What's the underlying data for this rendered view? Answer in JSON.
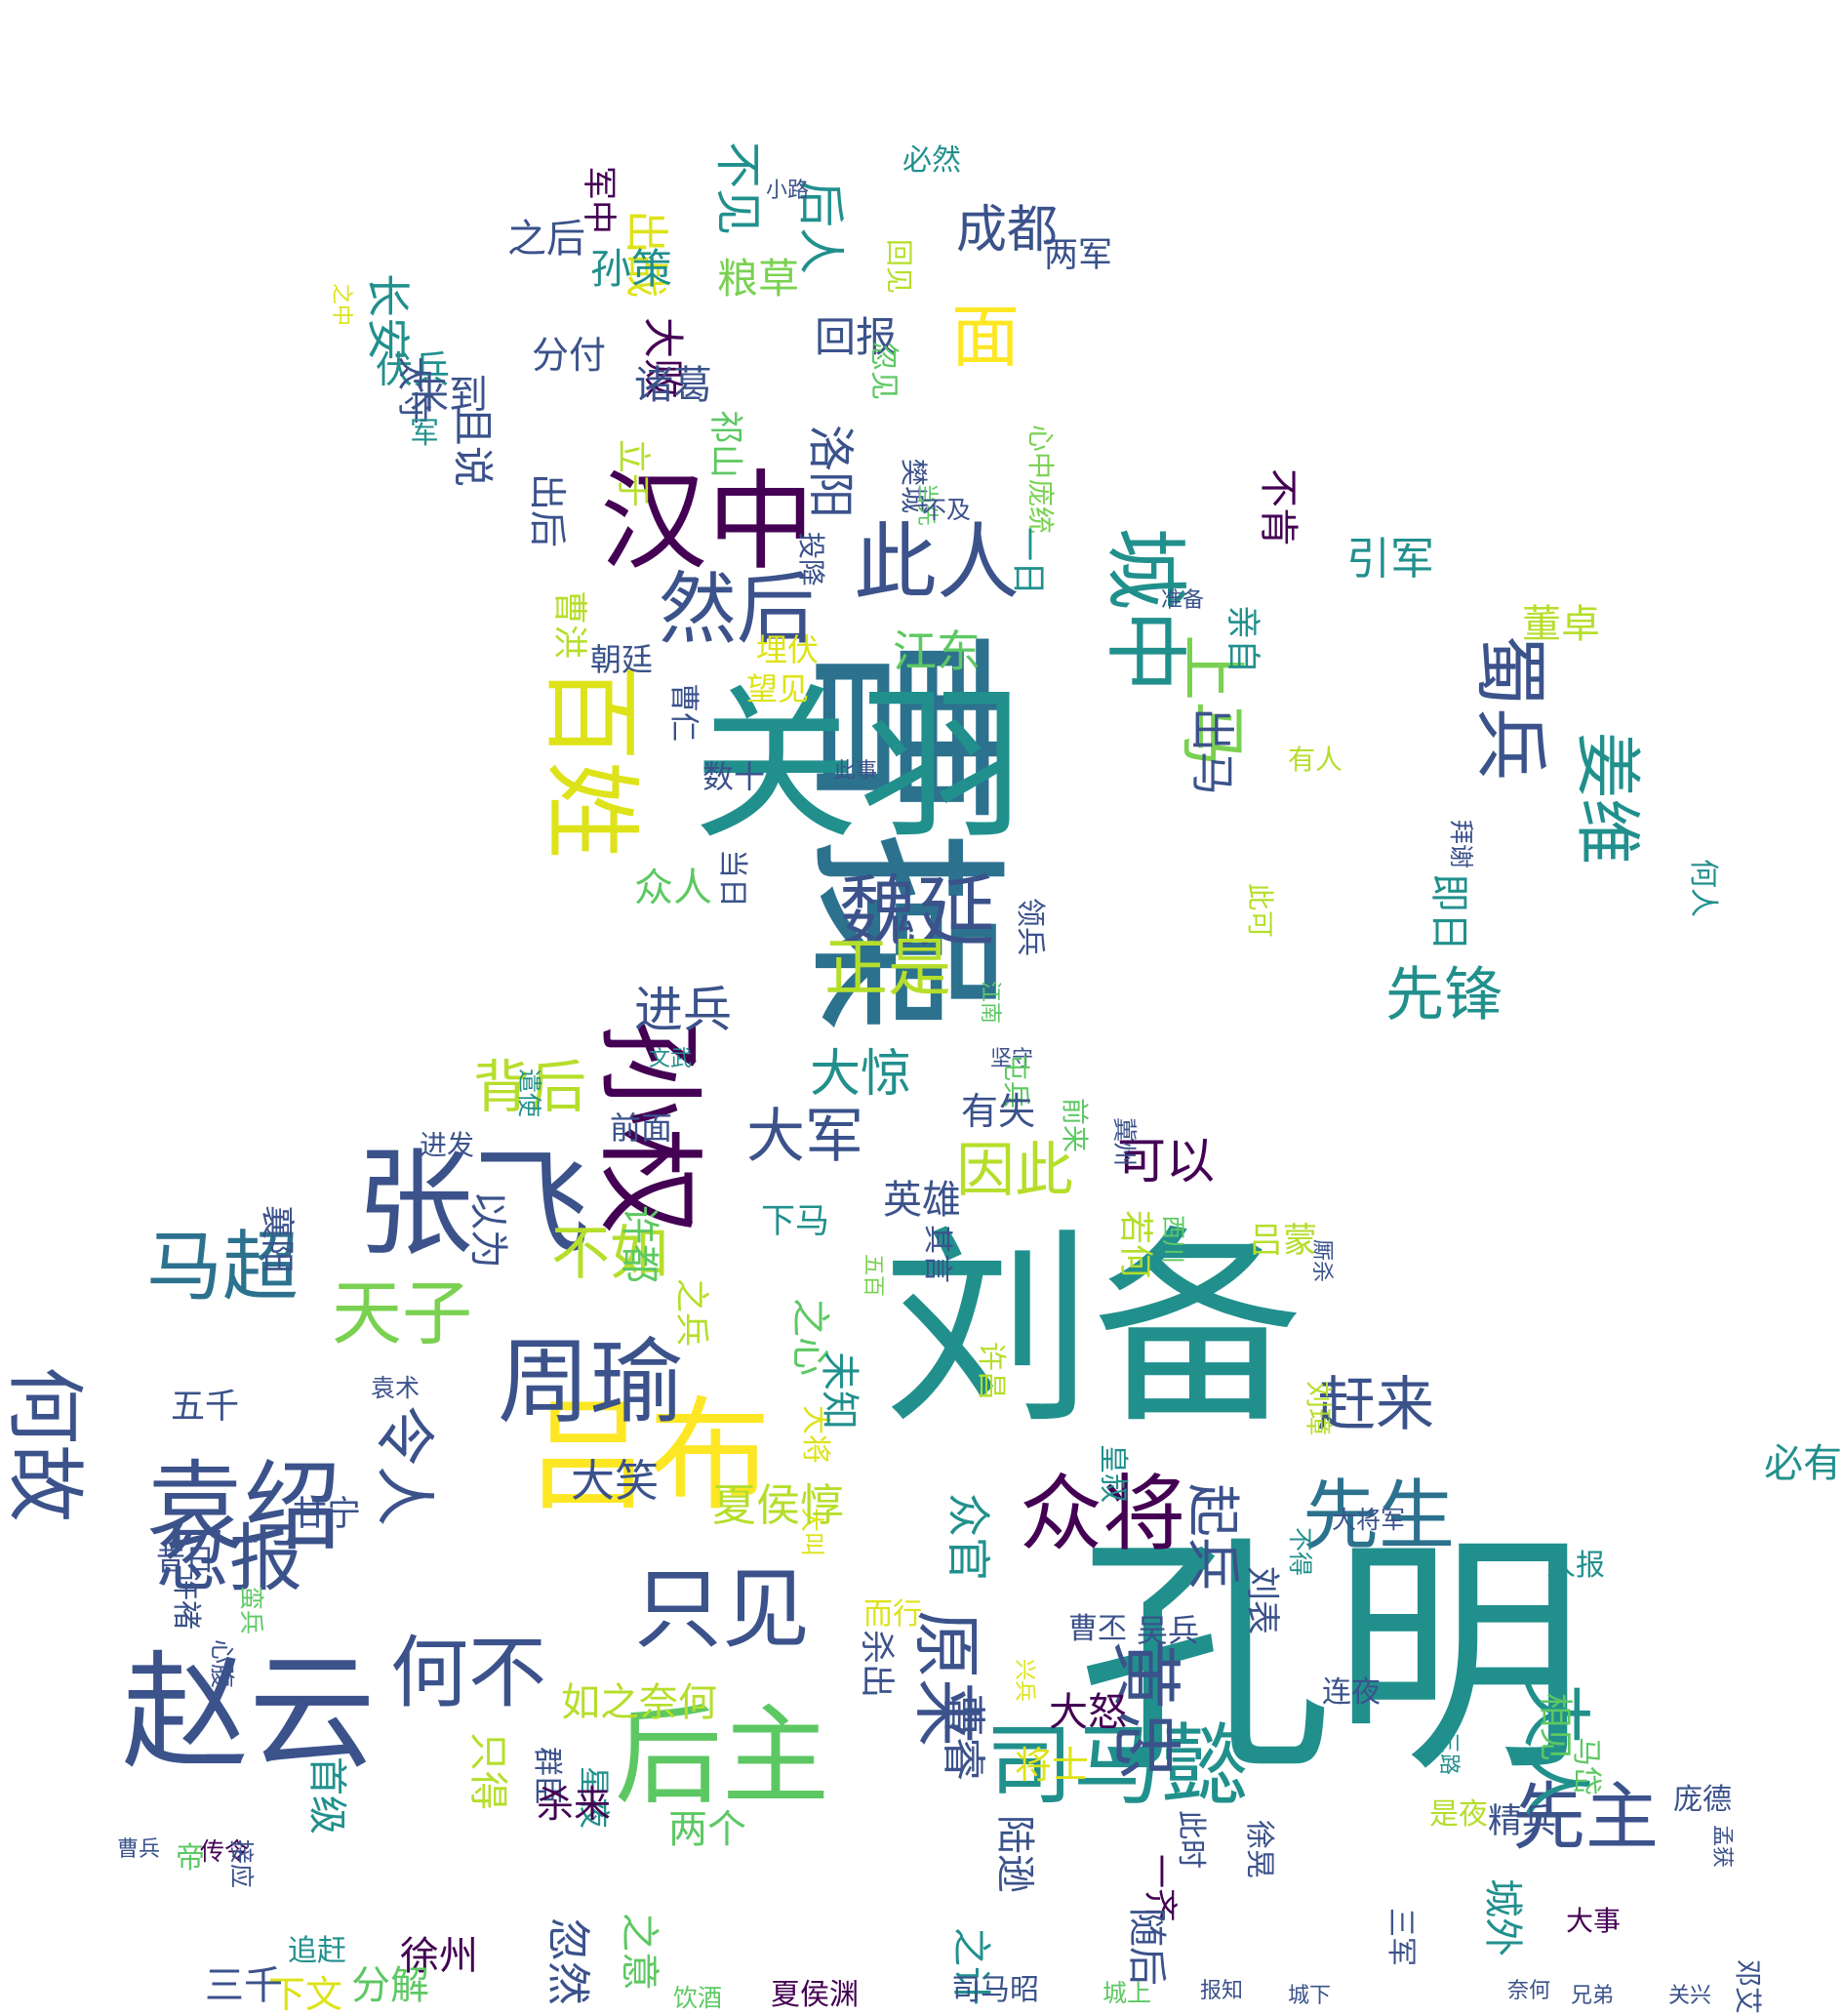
{
  "title": "",
  "colors": {
    "background": "#ffffff",
    "palette": [
      "#440154",
      "#3b528b",
      "#21908d",
      "#5dc863",
      "#fde725"
    ]
  },
  "words": [
    {
      "text": "孔明",
      "color": "#21908d",
      "vertical": false
    },
    {
      "text": "刘备",
      "color": "#21908d",
      "vertical": false
    },
    {
      "text": "曹操",
      "color": "#2c728e",
      "vertical": true
    },
    {
      "text": "关羽",
      "color": "#21908d",
      "vertical": false
    },
    {
      "text": "孙权",
      "color": "#440154",
      "vertical": true
    },
    {
      "text": "吕布",
      "color": "#fde725",
      "vertical": false
    },
    {
      "text": "赵云",
      "color": "#3b528b",
      "vertical": false
    },
    {
      "text": "张飞",
      "color": "#3b528b",
      "vertical": false
    },
    {
      "text": "汉中",
      "color": "#440154",
      "vertical": false
    },
    {
      "text": "百姓",
      "color": "#dde318",
      "vertical": true
    },
    {
      "text": "城中",
      "color": "#21908d",
      "vertical": true
    },
    {
      "text": "后主",
      "color": "#5dc863",
      "vertical": false
    },
    {
      "text": "周瑜",
      "color": "#3b528b",
      "vertical": false
    },
    {
      "text": "袁绍",
      "color": "#3b528b",
      "vertical": false
    },
    {
      "text": "司马懿",
      "color": "#21908d",
      "vertical": false
    },
    {
      "text": "此人",
      "color": "#3b528b",
      "vertical": false
    },
    {
      "text": "然后",
      "color": "#3b528b",
      "vertical": false
    },
    {
      "text": "魏延",
      "color": "#3b528b",
      "vertical": false
    },
    {
      "text": "众将",
      "color": "#440154",
      "vertical": false
    },
    {
      "text": "只见",
      "color": "#3b528b",
      "vertical": false
    },
    {
      "text": "先生",
      "color": "#2c728e",
      "vertical": false
    },
    {
      "text": "先主",
      "color": "#3b528b",
      "vertical": false
    },
    {
      "text": "天子",
      "color": "#7ad151",
      "vertical": false
    },
    {
      "text": "马超",
      "color": "#2c728e",
      "vertical": false
    },
    {
      "text": "何故",
      "color": "#3b528b",
      "vertical": true
    },
    {
      "text": "何不",
      "color": "#3b528b",
      "vertical": false
    },
    {
      "text": "蜀兵",
      "color": "#3b528b",
      "vertical": true
    },
    {
      "text": "上马",
      "color": "#7ad151",
      "vertical": true
    },
    {
      "text": "姜维",
      "color": "#21908d",
      "vertical": true
    },
    {
      "text": "夫人",
      "color": "#21908d",
      "vertical": true
    },
    {
      "text": "黄忠",
      "color": "#3b528b",
      "vertical": true
    },
    {
      "text": "原来",
      "color": "#3b528b",
      "vertical": true
    },
    {
      "text": "忽报",
      "color": "#3b528b",
      "vertical": false
    },
    {
      "text": "面",
      "color": "#fde725",
      "vertical": false
    },
    {
      "text": "正是",
      "color": "#b5de2b",
      "vertical": false
    },
    {
      "text": "先锋",
      "color": "#21908d",
      "vertical": false
    },
    {
      "text": "大军",
      "color": "#3b528b",
      "vertical": false
    },
    {
      "text": "因此",
      "color": "#b5de2b",
      "vertical": false
    },
    {
      "text": "背后",
      "color": "#b5de2b",
      "vertical": false
    },
    {
      "text": "大惊",
      "color": "#21908d",
      "vertical": false
    },
    {
      "text": "不如",
      "color": "#b5de2b",
      "vertical": false
    },
    {
      "text": "令人",
      "color": "#3b528b",
      "vertical": true
    },
    {
      "text": "赶来",
      "color": "#3b528b",
      "vertical": false
    },
    {
      "text": "起兵",
      "color": "#3b528b",
      "vertical": true
    },
    {
      "text": "可以",
      "color": "#440154",
      "vertical": false
    },
    {
      "text": "江东",
      "color": "#5dc863",
      "vertical": false
    },
    {
      "text": "洛阳",
      "color": "#3b528b",
      "vertical": true
    },
    {
      "text": "成都",
      "color": "#3b528b",
      "vertical": false
    },
    {
      "text": "后人",
      "color": "#21908d",
      "vertical": true
    },
    {
      "text": "不见",
      "color": "#21908d",
      "vertical": true
    },
    {
      "text": "出战",
      "color": "#dde318",
      "vertical": true
    },
    {
      "text": "孙策",
      "color": "#21908d",
      "vertical": false
    },
    {
      "text": "粮草",
      "color": "#7ad151",
      "vertical": false
    },
    {
      "text": "回报",
      "color": "#3b528b",
      "vertical": false
    },
    {
      "text": "大败",
      "color": "#440154",
      "vertical": true
    },
    {
      "text": "长安",
      "color": "#21908d",
      "vertical": true
    },
    {
      "text": "之后",
      "color": "#3b528b",
      "vertical": false
    },
    {
      "text": "分付",
      "color": "#3b528b",
      "vertical": false
    },
    {
      "text": "伏兵",
      "color": "#21908d",
      "vertical": false
    },
    {
      "text": "太守",
      "color": "#3b528b",
      "vertical": true
    },
    {
      "text": "诸葛",
      "color": "#3b528b",
      "vertical": false
    },
    {
      "text": "且说",
      "color": "#3b528b",
      "vertical": true
    },
    {
      "text": "军中",
      "color": "#440154",
      "vertical": true
    },
    {
      "text": "必然",
      "color": "#21908d",
      "vertical": false
    },
    {
      "text": "小路",
      "color": "#3b528b",
      "vertical": false
    },
    {
      "text": "两军",
      "color": "#3b528b",
      "vertical": false
    },
    {
      "text": "心中庞统",
      "color": "#7ad151",
      "vertical": true
    },
    {
      "text": "回见",
      "color": "#b5de2b",
      "vertical": true
    },
    {
      "text": "忽见",
      "color": "#5dc863",
      "vertical": true
    },
    {
      "text": "之中",
      "color": "#dde318",
      "vertical": true
    },
    {
      "text": "来到",
      "color": "#3b528b",
      "vertical": false
    },
    {
      "text": "军",
      "color": "#21908d",
      "vertical": false
    },
    {
      "text": "立于",
      "color": "#b5de2b",
      "vertical": true
    },
    {
      "text": "祁山",
      "color": "#5dc863",
      "vertical": true
    },
    {
      "text": "樊城",
      "color": "#3b528b",
      "vertical": true
    },
    {
      "text": "当先",
      "color": "#5dc863",
      "vertical": true
    },
    {
      "text": "不及",
      "color": "#3b528b",
      "vertical": false
    },
    {
      "text": "出后",
      "color": "#3b528b",
      "vertical": true
    },
    {
      "text": "一日",
      "color": "#21908d",
      "vertical": true
    },
    {
      "text": "投降",
      "color": "#3b528b",
      "vertical": true
    },
    {
      "text": "曹洪",
      "color": "#b5de2b",
      "vertical": true
    },
    {
      "text": "埋伏",
      "color": "#dde318",
      "vertical": false
    },
    {
      "text": "朝廷",
      "color": "#3b528b",
      "vertical": false
    },
    {
      "text": "望见",
      "color": "#dde318",
      "vertical": false
    },
    {
      "text": "此事",
      "color": "#3b528b",
      "vertical": false
    },
    {
      "text": "曹仁",
      "color": "#3b528b",
      "vertical": true
    },
    {
      "text": "数十",
      "color": "#3b528b",
      "vertical": false
    },
    {
      "text": "当日",
      "color": "#3b528b",
      "vertical": true
    },
    {
      "text": "众人",
      "color": "#5dc863",
      "vertical": false
    },
    {
      "text": "领兵",
      "color": "#3b528b",
      "vertical": true
    },
    {
      "text": "江南",
      "color": "#5dc863",
      "vertical": true
    },
    {
      "text": "进兵",
      "color": "#3b528b",
      "vertical": false
    },
    {
      "text": "坚守",
      "color": "#3b528b",
      "vertical": false
    },
    {
      "text": "文武",
      "color": "#21908d",
      "vertical": false
    },
    {
      "text": "引军",
      "color": "#21908d",
      "vertical": false
    },
    {
      "text": "不肯",
      "color": "#440154",
      "vertical": true
    },
    {
      "text": "董卓",
      "color": "#b5de2b",
      "vertical": false
    },
    {
      "text": "亲自",
      "color": "#21908d",
      "vertical": true
    },
    {
      "text": "出马",
      "color": "#3b528b",
      "vertical": true
    },
    {
      "text": "准备",
      "color": "#3b528b",
      "vertical": false
    },
    {
      "text": "有人",
      "color": "#b5de2b",
      "vertical": false
    },
    {
      "text": "拜谢",
      "color": "#3b528b",
      "vertical": true
    },
    {
      "text": "此可",
      "color": "#b5de2b",
      "vertical": true
    },
    {
      "text": "即日",
      "color": "#21908d",
      "vertical": true
    },
    {
      "text": "何人",
      "color": "#21908d",
      "vertical": true
    },
    {
      "text": "遣使",
      "color": "#21908d",
      "vertical": true
    },
    {
      "text": "进发",
      "color": "#3b528b",
      "vertical": false
    },
    {
      "text": "前面",
      "color": "#3b528b",
      "vertical": false
    },
    {
      "text": "屯兵",
      "color": "#5dc863",
      "vertical": true
    },
    {
      "text": "前来",
      "color": "#5dc863",
      "vertical": true
    },
    {
      "text": "冀州",
      "color": "#3b528b",
      "vertical": true
    },
    {
      "text": "有失",
      "color": "#3b528b",
      "vertical": false
    },
    {
      "text": "若何",
      "color": "#b5de2b",
      "vertical": true
    },
    {
      "text": "西川",
      "color": "#5dc863",
      "vertical": true
    },
    {
      "text": "吕蒙",
      "color": "#b5de2b",
      "vertical": false
    },
    {
      "text": "下马",
      "color": "#21908d",
      "vertical": false
    },
    {
      "text": "英雄",
      "color": "#3b528b",
      "vertical": false
    },
    {
      "text": "以为",
      "color": "#3b528b",
      "vertical": true
    },
    {
      "text": "许都",
      "color": "#5dc863",
      "vertical": true
    },
    {
      "text": "襄阳",
      "color": "#3b528b",
      "vertical": true
    },
    {
      "text": "其言",
      "color": "#3b528b",
      "vertical": true
    },
    {
      "text": "五百",
      "color": "#7ad151",
      "vertical": true
    },
    {
      "text": "厮杀",
      "color": "#3b528b",
      "vertical": true
    },
    {
      "text": "之心",
      "color": "#5dc863",
      "vertical": true
    },
    {
      "text": "之兵",
      "color": "#b5de2b",
      "vertical": true
    },
    {
      "text": "大将",
      "color": "#dde318",
      "vertical": true
    },
    {
      "text": "未知",
      "color": "#21908d",
      "vertical": true
    },
    {
      "text": "大叫",
      "color": "#dde318",
      "vertical": true
    },
    {
      "text": "许昌",
      "color": "#b5de2b",
      "vertical": true
    },
    {
      "text": "皇叔",
      "color": "#21908d",
      "vertical": true
    },
    {
      "text": "刘璋",
      "color": "#b5de2b",
      "vertical": true
    },
    {
      "text": "五千",
      "color": "#3b528b",
      "vertical": false
    },
    {
      "text": "袁术",
      "color": "#3b528b",
      "vertical": false
    },
    {
      "text": "甘宁",
      "color": "#3b528b",
      "vertical": false
    },
    {
      "text": "大笑",
      "color": "#3b528b",
      "vertical": false
    },
    {
      "text": "夏侯惇",
      "color": "#b5de2b",
      "vertical": false
    },
    {
      "text": "必有",
      "color": "#21908d",
      "vertical": false
    },
    {
      "text": "众官",
      "color": "#21908d",
      "vertical": true
    },
    {
      "text": "刘表",
      "color": "#3b528b",
      "vertical": true
    },
    {
      "text": "不得",
      "color": "#21908d",
      "vertical": true
    },
    {
      "text": "大将军",
      "color": "#3b528b",
      "vertical": false
    },
    {
      "text": "昔日",
      "color": "#3b528b",
      "vertical": false
    },
    {
      "text": "许褚",
      "color": "#3b528b",
      "vertical": true
    },
    {
      "text": "蛮兵",
      "color": "#5dc863",
      "vertical": true
    },
    {
      "text": "而行",
      "color": "#dde318",
      "vertical": false
    },
    {
      "text": "曹丕",
      "color": "#3b528b",
      "vertical": false
    },
    {
      "text": "吴兵",
      "color": "#3b528b",
      "vertical": false
    },
    {
      "text": "人报",
      "color": "#21908d",
      "vertical": false
    },
    {
      "text": "连夜",
      "color": "#3b528b",
      "vertical": false
    },
    {
      "text": "心腹",
      "color": "#3b528b",
      "vertical": true
    },
    {
      "text": "如之奈何",
      "color": "#b5de2b",
      "vertical": false
    },
    {
      "text": "杀出",
      "color": "#3b528b",
      "vertical": true
    },
    {
      "text": "大怒",
      "color": "#440154",
      "vertical": false
    },
    {
      "text": "徐晃",
      "color": "#3b528b",
      "vertical": true
    },
    {
      "text": "相见",
      "color": "#5dc863",
      "vertical": true
    },
    {
      "text": "马岱",
      "color": "#5dc863",
      "vertical": true
    },
    {
      "text": "精兵",
      "color": "#3b528b",
      "vertical": false
    },
    {
      "text": "三路",
      "color": "#21908d",
      "vertical": true
    },
    {
      "text": "首级",
      "color": "#21908d",
      "vertical": true
    },
    {
      "text": "群臣",
      "color": "#3b528b",
      "vertical": true
    },
    {
      "text": "曹兵",
      "color": "#3b528b",
      "vertical": false
    },
    {
      "text": "传令",
      "color": "#440154",
      "vertical": false
    },
    {
      "text": "接应",
      "color": "#3b528b",
      "vertical": true
    },
    {
      "text": "星夜",
      "color": "#21908d",
      "vertical": true
    },
    {
      "text": "两个",
      "color": "#5dc863",
      "vertical": false
    },
    {
      "text": "将士",
      "color": "#dde318",
      "vertical": false
    },
    {
      "text": "是夜",
      "color": "#b5de2b",
      "vertical": false
    },
    {
      "text": "只得",
      "color": "#b5de2b",
      "vertical": true
    },
    {
      "text": "庞德",
      "color": "#3b528b",
      "vertical": false
    },
    {
      "text": "陆逊",
      "color": "#3b528b",
      "vertical": true
    },
    {
      "text": "一齐",
      "color": "#440154",
      "vertical": true
    },
    {
      "text": "曹睿",
      "color": "#3b528b",
      "vertical": true
    },
    {
      "text": "兴兵",
      "color": "#dde318",
      "vertical": true
    },
    {
      "text": "之计",
      "color": "#21908d",
      "vertical": true
    },
    {
      "text": "此时",
      "color": "#3b528b",
      "vertical": true
    },
    {
      "text": "帝",
      "color": "#5dc863",
      "vertical": false
    },
    {
      "text": "杀来",
      "color": "#440154",
      "vertical": false
    },
    {
      "text": "忽然",
      "color": "#3b528b",
      "vertical": true
    },
    {
      "text": "徐州",
      "color": "#440154",
      "vertical": false
    },
    {
      "text": "之意",
      "color": "#5dc863",
      "vertical": true
    },
    {
      "text": "城外",
      "color": "#21908d",
      "vertical": true
    },
    {
      "text": "孟获",
      "color": "#3b528b",
      "vertical": true
    },
    {
      "text": "大事",
      "color": "#440154",
      "vertical": false
    },
    {
      "text": "三军",
      "color": "#3b528b",
      "vertical": true
    },
    {
      "text": "随后",
      "color": "#3b528b",
      "vertical": true
    },
    {
      "text": "追赶",
      "color": "#21908d",
      "vertical": false
    },
    {
      "text": "三千",
      "color": "#3b528b",
      "vertical": false
    },
    {
      "text": "下文",
      "color": "#dde318",
      "vertical": false
    },
    {
      "text": "分解",
      "color": "#5dc863",
      "vertical": false
    },
    {
      "text": "饮酒",
      "color": "#5dc863",
      "vertical": false
    },
    {
      "text": "夏侯渊",
      "color": "#440154",
      "vertical": false
    },
    {
      "text": "司马昭",
      "color": "#3b528b",
      "vertical": false
    },
    {
      "text": "城上",
      "color": "#5dc863",
      "vertical": false
    },
    {
      "text": "报知",
      "color": "#3b528b",
      "vertical": false
    },
    {
      "text": "城下",
      "color": "#3b528b",
      "vertical": false
    },
    {
      "text": "奈何",
      "color": "#3b528b",
      "vertical": false
    },
    {
      "text": "兄弟",
      "color": "#3b528b",
      "vertical": false
    },
    {
      "text": "关兴",
      "color": "#3b528b",
      "vertical": false
    },
    {
      "text": "邓艾",
      "color": "#3b528b",
      "vertical": true
    }
  ]
}
